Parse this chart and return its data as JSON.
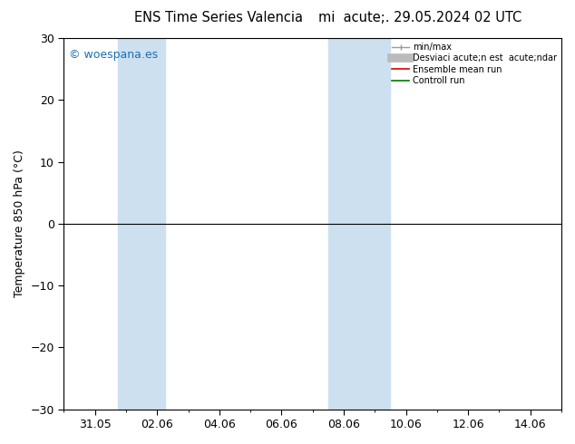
{
  "title_left": "ENS Time Series Valencia",
  "title_right": "mi  acute;. 29.05.2024 02 UTC",
  "ylabel": "Temperature 850 hPa (°C)",
  "ylim": [
    -30,
    30
  ],
  "yticks": [
    -30,
    -20,
    -10,
    0,
    10,
    20,
    30
  ],
  "xtick_labels": [
    "31.05",
    "02.06",
    "04.06",
    "06.06",
    "08.06",
    "10.06",
    "12.06",
    "14.06"
  ],
  "xtick_positions": [
    1,
    3,
    5,
    7,
    9,
    11,
    13,
    15
  ],
  "xlim": [
    0,
    16
  ],
  "shade_color": "#cce0f0",
  "shade_bands": [
    {
      "x_start": 1.75,
      "x_end": 3.25
    },
    {
      "x_start": 8.5,
      "x_end": 10.5
    }
  ],
  "watermark": "© woespana.es",
  "watermark_color": "#1a6eb5",
  "background_color": "#ffffff",
  "plot_bg_color": "#ffffff",
  "legend_label_0": "min/max",
  "legend_label_1": "Desviaci acute;n est  acute;ndar",
  "legend_label_2": "Ensemble mean run",
  "legend_label_3": "Controll run",
  "legend_color_0": "#999999",
  "legend_color_1": "#bbbbbb",
  "legend_color_2": "#dd0000",
  "legend_color_3": "#007700",
  "hline_y": 0,
  "hline_color": "#000000",
  "hline_lw": 0.8,
  "figsize": [
    6.34,
    4.9
  ],
  "dpi": 100
}
